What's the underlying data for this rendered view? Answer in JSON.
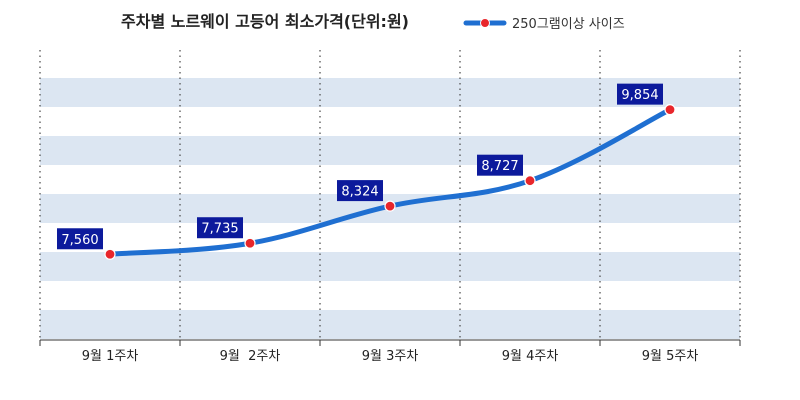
{
  "chart_data": {
    "type": "line",
    "title": "주차별 노르웨이 고등어 최소가격(단위:원)",
    "categories": [
      "9월 1주차",
      "9월  2주차",
      "9월 3주차",
      "9월 4주차",
      "9월 5주차"
    ],
    "series": [
      {
        "name": "250그램이상 사이즈",
        "values": [
          7560,
          7735,
          8324,
          8727,
          9854
        ],
        "data_labels": [
          "7,560",
          "7,735",
          "8,324",
          "8,727",
          "9,854"
        ]
      }
    ],
    "ylim": [
      6200,
      10800
    ],
    "grid": "horizontal bands, dotted vertical separators",
    "legend": "top-right",
    "line_color": "#1f6fd1",
    "marker_color": "#e8262b",
    "label_bg_color": "#0c1a9c",
    "band_color": "#dce6f2"
  }
}
